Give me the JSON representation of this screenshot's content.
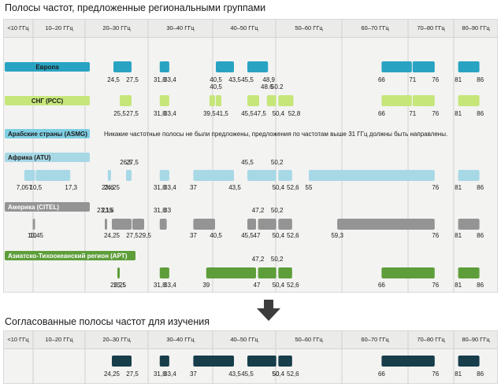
{
  "title_top": "Полосы частот, предложенные региональными группами",
  "title_bottom": "Согласованные полосы частот для изучения",
  "columns": [
    "<10 ГГц",
    "10–20 ГГц",
    "20–30 ГГц",
    "30–40 ГГц",
    "40–50 ГГц",
    "50–60 ГГц",
    "60–70 ГГц",
    "70–80 ГГц",
    "80–90 ГГц"
  ],
  "colors": {
    "europe": "#29a3c2",
    "cis": "#c6e67a",
    "arab": "#7fcfe3",
    "africa": "#a7d8e6",
    "americas": "#949494",
    "apt": "#5e9e3a",
    "agreed": "#173e4a"
  },
  "groups": [
    {
      "id": "europe",
      "label": "Европа",
      "label_color": "#1a1a1a",
      "bands": [
        [
          24.5,
          27.5
        ],
        [
          31.8,
          33.4
        ],
        [
          40.5,
          43.5
        ],
        [
          45.5,
          48.9
        ],
        [
          66,
          71
        ],
        [
          71,
          76
        ],
        [
          81,
          86
        ]
      ],
      "values_below": [
        "24,5",
        "27,5",
        "31,8",
        "33,4",
        "40,5",
        "43,5",
        "45,5",
        "48,9",
        "66",
        "71",
        "76",
        "81",
        "86"
      ]
    },
    {
      "id": "cis",
      "label": "СНГ (РСС)",
      "label_color": "#1a1a1a",
      "bands": [
        [
          25.5,
          27.5
        ],
        [
          31.8,
          33.4
        ],
        [
          39.5,
          40.5
        ],
        [
          40.5,
          41.5
        ],
        [
          45.5,
          47.5
        ],
        [
          48.6,
          50.2
        ],
        [
          50.4,
          52.8
        ],
        [
          66,
          71
        ],
        [
          71,
          76
        ],
        [
          81,
          86
        ]
      ],
      "values_above": [
        "40,5",
        "48.6",
        "50.2"
      ],
      "values_below": [
        "25,5",
        "27,5",
        "31,8",
        "33,4",
        "39,5",
        "41,5",
        "45,5",
        "47,5",
        "50,4",
        "52,8",
        "66",
        "71",
        "76",
        "81",
        "86"
      ]
    },
    {
      "id": "arab",
      "label": "Арабские страны (ASMG)",
      "label_color": "#1a1a1a",
      "note": "Никакие частотные полосы не были предложены, предложения по частотам выше 31 ГГц должны быть направлены."
    },
    {
      "id": "africa",
      "label": "Африка (ATU)",
      "label_color": "#1a1a1a",
      "bands": [
        [
          7.057,
          10.5
        ],
        [
          10.5,
          17.3
        ],
        [
          23.6,
          24.25
        ],
        [
          26.5,
          27.5
        ],
        [
          31.8,
          33.4
        ],
        [
          37,
          43.5
        ],
        [
          45.5,
          50.2
        ],
        [
          50.4,
          52.6
        ],
        [
          55,
          76
        ],
        [
          81,
          86
        ]
      ],
      "values_above": [
        "26,5",
        "27,5",
        "45,5",
        "50,2"
      ],
      "values_below": [
        "7,057",
        "10,5",
        "17,3",
        "23,6",
        "24,25",
        "31,8",
        "33,4",
        "37",
        "43,5",
        "50,4",
        "52,6",
        "55",
        "76",
        "81",
        "86"
      ]
    },
    {
      "id": "americas",
      "label": "Америка (CITEL)",
      "label_color": "#ffffff",
      "bands": [
        [
          10,
          10.45
        ],
        [
          23.15,
          23.6
        ],
        [
          24.25,
          27.5
        ],
        [
          27.5,
          29.5
        ],
        [
          31.8,
          33
        ],
        [
          37,
          40.5
        ],
        [
          45.5,
          47
        ],
        [
          47.2,
          50.2
        ],
        [
          50.4,
          52.6
        ],
        [
          59.3,
          76
        ],
        [
          81,
          86
        ]
      ],
      "values_above": [
        "23,15",
        "23,6",
        "31,8",
        "33",
        "47,2",
        "50,2"
      ],
      "values_below": [
        "10",
        "10,45",
        "24,25",
        "27,5",
        "29,5",
        "37",
        "40,5",
        "45,5",
        "47",
        "50,4",
        "52,6",
        "59,3",
        "76",
        "81",
        "86"
      ]
    },
    {
      "id": "apt",
      "label": "Азиатско-Тихоокеанский регион (APT)",
      "label_color": "#ffffff",
      "bands": [
        [
          25.25,
          25.5
        ],
        [
          31.8,
          33.4
        ],
        [
          39,
          47
        ],
        [
          47.2,
          50.2
        ],
        [
          50.4,
          52.6
        ],
        [
          66,
          76
        ],
        [
          81,
          86
        ]
      ],
      "values_above": [
        "47,2",
        "50,2"
      ],
      "values_below": [
        "25,25",
        "25,5",
        "31,8",
        "33,4",
        "39",
        "47",
        "50,4",
        "52,6",
        "66",
        "76",
        "81",
        "86"
      ]
    }
  ],
  "agreed": {
    "bands": [
      [
        24.25,
        27.5
      ],
      [
        31.8,
        33.4
      ],
      [
        37,
        43.5
      ],
      [
        45.5,
        50.2
      ],
      [
        50.4,
        52.6
      ],
      [
        66,
        76
      ],
      [
        81,
        86
      ]
    ],
    "values_below": [
      "24,25",
      "27,5",
      "31,8",
      "33,4",
      "37",
      "43,5",
      "45,5",
      "50",
      "50,4",
      "52,6",
      "66",
      "76",
      "81",
      "86"
    ]
  }
}
